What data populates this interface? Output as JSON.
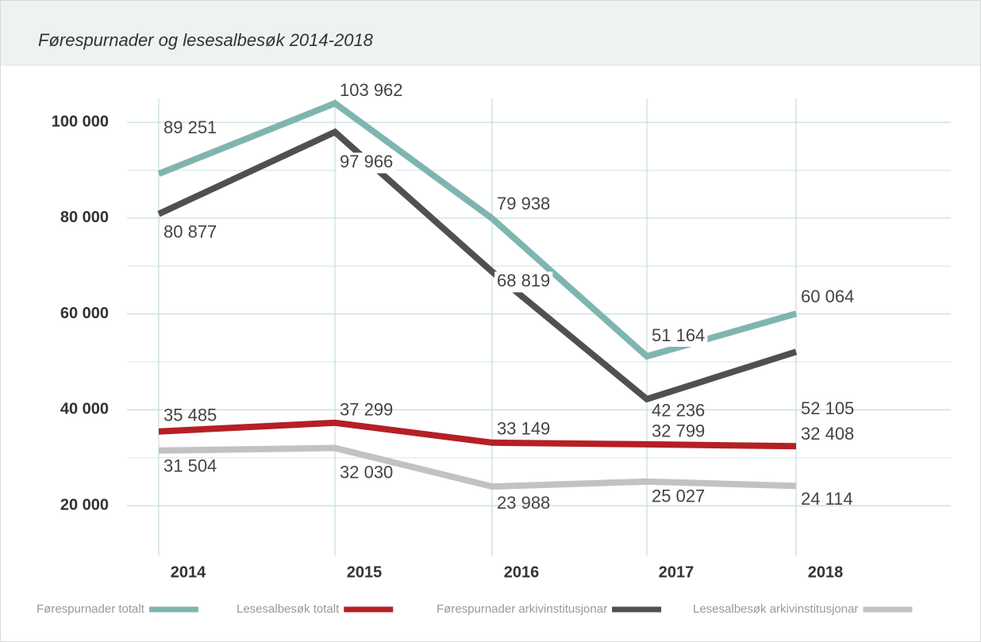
{
  "chart_data": {
    "type": "line",
    "title": "Førespurnader og lesesalbesøk 2014-2018",
    "categories": [
      "2014",
      "2015",
      "2016",
      "2017",
      "2018"
    ],
    "ylim": [
      10000,
      105000
    ],
    "yticks": [
      {
        "value": 20000,
        "label": "20 000"
      },
      {
        "value": 40000,
        "label": "40 000"
      },
      {
        "value": 60000,
        "label": "60 000"
      },
      {
        "value": 80000,
        "label": "80 000"
      },
      {
        "value": 100000,
        "label": "100 000"
      }
    ],
    "minor_yticks": [
      30000,
      50000,
      70000,
      90000
    ],
    "grid": true,
    "legend": "bottom",
    "series": [
      {
        "name": "Førespurnader totalt",
        "color": "#7fb5b0",
        "values": [
          89251,
          103962,
          79938,
          51164,
          60064
        ],
        "value_labels": [
          "89 251",
          "103 962",
          "79 938",
          "51 164",
          "60 064"
        ]
      },
      {
        "name": "Lesesalbesøk totalt",
        "color": "#b52024",
        "values": [
          35485,
          37299,
          33149,
          32799,
          32408
        ],
        "value_labels": [
          "35 485",
          "37 299",
          "33 149",
          "32 799",
          "32 408"
        ]
      },
      {
        "name": "Førespurnader arkivinstitusjonar",
        "color": "#505050",
        "values": [
          80877,
          97966,
          68819,
          42236,
          52105
        ],
        "value_labels": [
          "80 877",
          "97 966",
          "68 819",
          "42 236",
          "52 105"
        ]
      },
      {
        "name": "Lesesalbesøk arkivinstitusjonar",
        "color": "#c2c2c6",
        "values": [
          31504,
          32030,
          23988,
          25027,
          24114
        ],
        "value_labels": [
          "31 504",
          "32 030",
          "23 988",
          "25 027",
          "24 114"
        ]
      }
    ]
  }
}
